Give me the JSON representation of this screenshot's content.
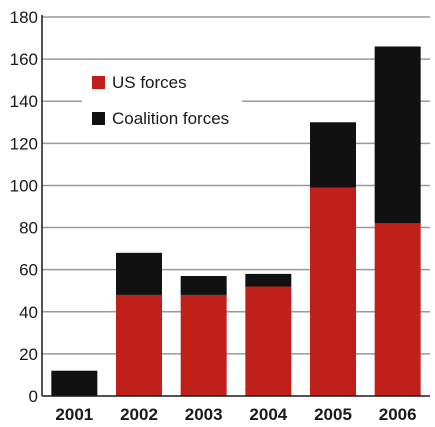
{
  "chart_data": {
    "type": "bar",
    "stacked": true,
    "categories": [
      "2001",
      "2002",
      "2003",
      "2004",
      "2005",
      "2006"
    ],
    "series": [
      {
        "name": "US forces",
        "color": "#c0201a",
        "values": [
          0,
          48,
          48,
          52,
          99,
          82
        ]
      },
      {
        "name": "Coalition forces",
        "color": "#111111",
        "values": [
          12,
          20,
          9,
          6,
          31,
          84
        ]
      }
    ],
    "ylim": [
      0,
      180
    ],
    "yticks": [
      0,
      20,
      40,
      60,
      80,
      100,
      120,
      140,
      160,
      180
    ],
    "grid": true,
    "legend_position": "top-left",
    "title": "",
    "xlabel": "",
    "ylabel": ""
  }
}
